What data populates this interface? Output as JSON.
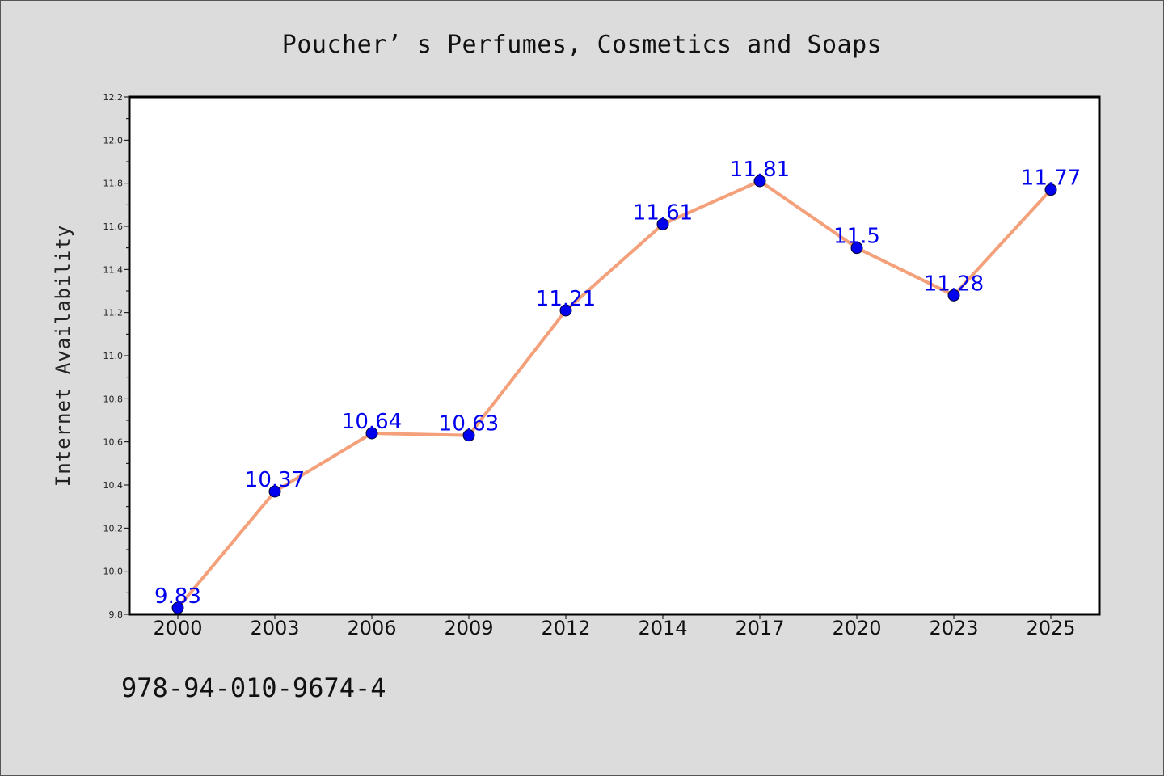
{
  "title": "Poucher’ s Perfumes, Cosmetics and Soaps",
  "footer_text": "978-94-010-9674-4",
  "chart_data": {
    "type": "line",
    "title": "Poucher’ s Perfumes, Cosmetics and Soaps",
    "xlabel": "",
    "ylabel": "Internet Availability",
    "categories": [
      "2000",
      "2003",
      "2006",
      "2009",
      "2012",
      "2014",
      "2017",
      "2020",
      "2023",
      "2025"
    ],
    "series": [
      {
        "values": [
          9.83,
          10.37,
          10.64,
          10.63,
          11.21,
          11.61,
          11.81,
          11.5,
          11.28,
          11.77
        ],
        "labels": [
          "9.83",
          "10.37",
          "10.64",
          "10.63",
          "11.21",
          "11.61",
          "11.81",
          "11.5",
          "11.28",
          "11.77"
        ]
      }
    ],
    "ylim": [
      9.8,
      12.2
    ],
    "yticks": [
      "9.8",
      "10.0",
      "10.2",
      "10.4",
      "10.6",
      "10.8",
      "11.0",
      "11.2",
      "11.4",
      "11.6",
      "11.8",
      "12.0",
      "12.2"
    ],
    "grid": false,
    "legend": "none",
    "colors": {
      "line": "#f4a07a",
      "marker": "#0000ee",
      "marker_edge": "#000033",
      "label": "#0000ee",
      "plot_bg": "#ffffff",
      "figure_bg": "#dcdcdc"
    }
  }
}
